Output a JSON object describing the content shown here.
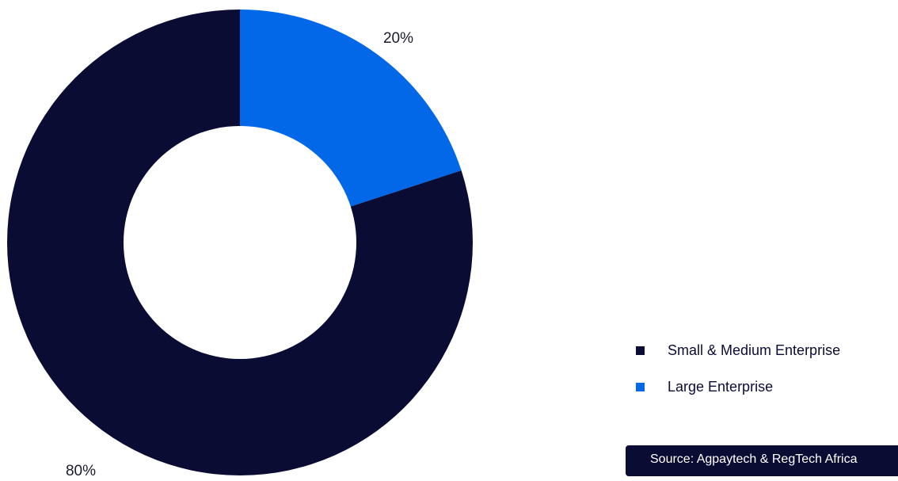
{
  "chart_data": {
    "type": "pie",
    "variant": "donut",
    "categories": [
      "Small &  Medium Enterprise",
      "Large Enterprise"
    ],
    "values": [
      80,
      20
    ],
    "value_labels": [
      "80%",
      "20%"
    ],
    "colors": [
      "#0b0c33",
      "#0268e7"
    ],
    "legend_position": "bottom-right"
  },
  "legend": {
    "items": [
      {
        "label": "Small &  Medium Enterprise",
        "color": "#0b0c33"
      },
      {
        "label": "Large Enterprise",
        "color": "#0268e7"
      }
    ]
  },
  "source": {
    "text": "Source: Agpaytech & RegTech Africa"
  }
}
